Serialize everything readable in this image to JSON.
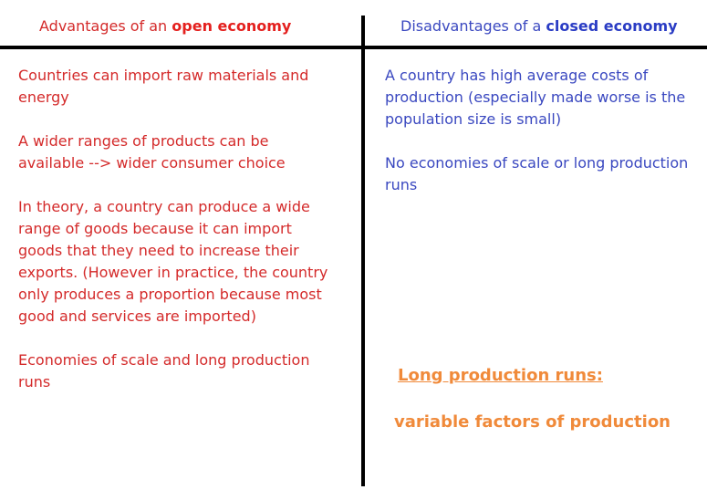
{
  "left": {
    "header_prefix": "Advantages of an ",
    "header_bold": "open economy",
    "points": [
      "Countries can import raw materials and energy",
      "A wider ranges of products can be available --> wider consumer choice",
      "In theory, a country can produce a wide range of goods because it can import goods that they need to increase their exports. (However in practice, the country only produces a proportion because most good and services are imported)",
      "Economies of scale and long production runs"
    ]
  },
  "right": {
    "header_prefix": "Disadvantages of a ",
    "header_bold": "closed economy",
    "points": [
      "A country has high average costs of production (especially made worse is the population size is small)",
      "No economies of scale or long production runs"
    ]
  },
  "note": {
    "title": "Long production runs:",
    "body": "variable factors of production"
  },
  "colors": {
    "advantages": "#d42a2a",
    "disadvantages": "#3a48c0",
    "note": "#f08a3a"
  }
}
